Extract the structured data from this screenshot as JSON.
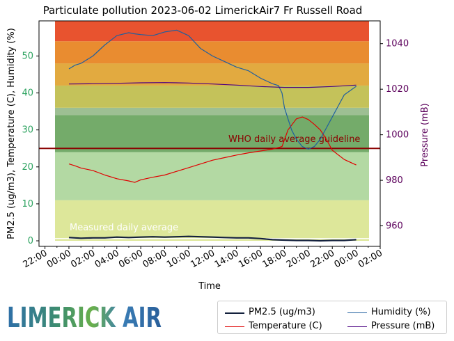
{
  "chart_data": {
    "type": "line",
    "title": "Particulate pollution 2023-06-02 LimerickAir7 Fr Russell Road",
    "xlabel": "Time",
    "ylabel": "PM2.5 (ug/m3), Temperature (C), Humidity (%)",
    "y2label": "Pressure (mB)",
    "x_ticks": [
      "22:00",
      "00:00",
      "02:00",
      "04:00",
      "06:00",
      "08:00",
      "10:00",
      "12:00",
      "14:00",
      "16:00",
      "18:00",
      "20:00",
      "22:00",
      "00:00",
      "02:00"
    ],
    "x_range_hours": [
      -2.5,
      26.0
    ],
    "y_ticks": [
      0,
      10,
      20,
      30,
      40,
      50
    ],
    "ylim": [
      -1.5,
      59.5
    ],
    "y2_ticks": [
      960,
      980,
      1000,
      1020,
      1040
    ],
    "y2lim": [
      951,
      1050
    ],
    "legend_position": "below-right",
    "bands": [
      {
        "from": 0,
        "to": 11,
        "color": "#dde79a"
      },
      {
        "from": 11,
        "to": 24,
        "color": "#b3d9a3"
      },
      {
        "from": 24,
        "to": 34,
        "color": "#74ab6a"
      },
      {
        "from": 34,
        "to": 36,
        "color": "#9dbf93"
      },
      {
        "from": 36,
        "to": 42,
        "color": "#c4c25a"
      },
      {
        "from": 42,
        "to": 48,
        "color": "#e2aa40"
      },
      {
        "from": 48,
        "to": 54,
        "color": "#e98c30"
      },
      {
        "from": 54,
        "to": 59.5,
        "color": "#e8532f"
      }
    ],
    "reference_lines": [
      {
        "label": "WHO daily average guideline",
        "y": 25,
        "color": "#8b0000"
      },
      {
        "label": "Measured daily average",
        "y": 0.6,
        "color": "#ffffff"
      }
    ],
    "series": [
      {
        "name": "PM2.5 (ug/m3)",
        "color": "#14213d",
        "axis": "left",
        "x": [
          0,
          1,
          2,
          3,
          4,
          5,
          6,
          7,
          8,
          9,
          10,
          11,
          12,
          13,
          14,
          15,
          16,
          17,
          18,
          19,
          20,
          21,
          22,
          23,
          24
        ],
        "y": [
          0.9,
          0.7,
          0.8,
          0.8,
          1.0,
          0.9,
          1.0,
          1.1,
          1.0,
          1.1,
          1.2,
          1.1,
          1.0,
          0.9,
          0.8,
          0.8,
          0.6,
          0.3,
          0.2,
          0.1,
          0.1,
          0.0,
          0.1,
          0.1,
          0.3
        ]
      },
      {
        "name": "Temperature (C)",
        "color": "#e00000",
        "axis": "left",
        "x": [
          0,
          0.5,
          1,
          2,
          3,
          4,
          5,
          5.5,
          6,
          7,
          8,
          9,
          10,
          11,
          12,
          13,
          14,
          15,
          16,
          17,
          17.8,
          18.3,
          19,
          19.5,
          20,
          20.5,
          21,
          21.5,
          22,
          23,
          24
        ],
        "y": [
          20.8,
          20.3,
          19.7,
          19.0,
          17.8,
          16.8,
          16.2,
          15.8,
          16.5,
          17.2,
          17.8,
          18.8,
          19.8,
          20.8,
          21.8,
          22.5,
          23.2,
          23.8,
          24.3,
          24.8,
          25.5,
          30.0,
          33.0,
          33.5,
          32.8,
          31.5,
          30.0,
          27.5,
          24.5,
          22.0,
          20.5
        ]
      },
      {
        "name": "Humidity (%)",
        "color": "#1f5f9f",
        "axis": "left",
        "x": [
          0,
          0.5,
          1,
          2,
          3,
          4,
          5,
          5.5,
          6,
          7,
          8,
          9,
          10,
          11,
          12,
          13,
          14,
          15,
          16,
          17,
          17.5,
          17.8,
          18,
          18.3,
          18.6,
          19,
          19.5,
          20,
          20.5,
          21,
          22,
          23,
          24
        ],
        "y": [
          46.5,
          47.5,
          48.0,
          50.0,
          53.0,
          55.5,
          56.3,
          56.0,
          55.8,
          55.5,
          56.5,
          57.0,
          55.5,
          52.0,
          50.0,
          48.5,
          47.0,
          46.0,
          44.0,
          42.5,
          42.0,
          40.0,
          36.0,
          33.0,
          30.0,
          27.5,
          25.5,
          24.8,
          25.5,
          27.5,
          33.5,
          39.5,
          41.8
        ]
      },
      {
        "name": "Pressure (mB)",
        "color": "#4b0082",
        "axis": "right",
        "x": [
          0,
          2,
          4,
          6,
          8,
          10,
          12,
          14,
          16,
          18,
          20,
          22,
          24
        ],
        "y": [
          1022.3,
          1022.4,
          1022.6,
          1022.8,
          1022.9,
          1022.7,
          1022.3,
          1021.8,
          1021.2,
          1020.8,
          1020.8,
          1021.2,
          1021.8
        ]
      }
    ]
  },
  "branding": {
    "logo_text": "LIMERICK AIR"
  }
}
